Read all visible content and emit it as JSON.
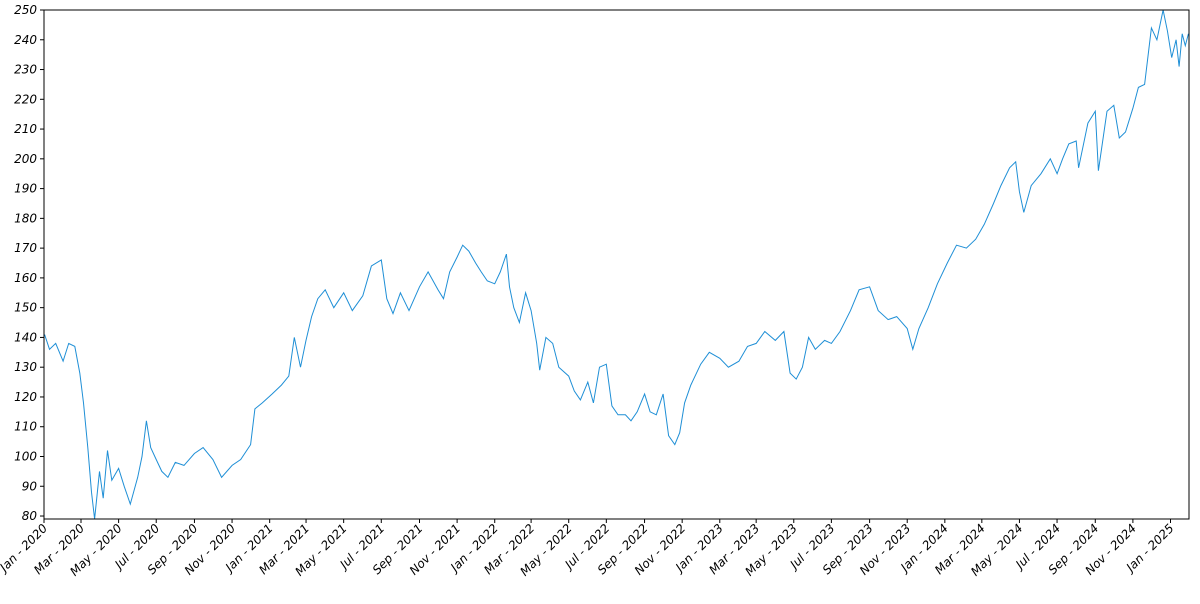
{
  "chart_data": {
    "type": "line",
    "title": "",
    "xlabel": "",
    "ylabel": "",
    "grid": false,
    "legend": "none",
    "line_color": "#1f8fd6",
    "ylim": [
      79,
      250
    ],
    "xlim": [
      "2020-01-01",
      "2025-01-31"
    ],
    "y_ticks": [
      80,
      90,
      100,
      110,
      120,
      130,
      140,
      150,
      160,
      170,
      180,
      190,
      200,
      210,
      220,
      230,
      240,
      250
    ],
    "x_ticks": [
      {
        "date": "2020-01-01",
        "label": "Jan - 2020"
      },
      {
        "date": "2020-03-01",
        "label": "Mar - 2020"
      },
      {
        "date": "2020-05-01",
        "label": "May - 2020"
      },
      {
        "date": "2020-07-01",
        "label": "Jul - 2020"
      },
      {
        "date": "2020-09-01",
        "label": "Sep - 2020"
      },
      {
        "date": "2020-11-01",
        "label": "Nov - 2020"
      },
      {
        "date": "2021-01-01",
        "label": "Jan - 2021"
      },
      {
        "date": "2021-03-01",
        "label": "Mar - 2021"
      },
      {
        "date": "2021-05-01",
        "label": "May - 2021"
      },
      {
        "date": "2021-07-01",
        "label": "Jul - 2021"
      },
      {
        "date": "2021-09-01",
        "label": "Sep - 2021"
      },
      {
        "date": "2021-11-01",
        "label": "Nov - 2021"
      },
      {
        "date": "2022-01-01",
        "label": "Jan - 2022"
      },
      {
        "date": "2022-03-01",
        "label": "Mar - 2022"
      },
      {
        "date": "2022-05-01",
        "label": "May - 2022"
      },
      {
        "date": "2022-07-01",
        "label": "Jul - 2022"
      },
      {
        "date": "2022-09-01",
        "label": "Sep - 2022"
      },
      {
        "date": "2022-11-01",
        "label": "Nov - 2022"
      },
      {
        "date": "2023-01-01",
        "label": "Jan - 2023"
      },
      {
        "date": "2023-03-01",
        "label": "Mar - 2023"
      },
      {
        "date": "2023-05-01",
        "label": "May - 2023"
      },
      {
        "date": "2023-07-01",
        "label": "Jul - 2023"
      },
      {
        "date": "2023-09-01",
        "label": "Sep - 2023"
      },
      {
        "date": "2023-11-01",
        "label": "Nov - 2023"
      },
      {
        "date": "2024-01-01",
        "label": "Jan - 2024"
      },
      {
        "date": "2024-03-01",
        "label": "Mar - 2024"
      },
      {
        "date": "2024-05-01",
        "label": "May - 2024"
      },
      {
        "date": "2024-07-01",
        "label": "Jul - 2024"
      },
      {
        "date": "2024-09-01",
        "label": "Sep - 2024"
      },
      {
        "date": "2024-11-01",
        "label": "Nov - 2024"
      },
      {
        "date": "2025-01-01",
        "label": "Jan - 2025"
      }
    ],
    "series": [
      {
        "points": [
          [
            "2020-01-02",
            141
          ],
          [
            "2020-01-10",
            136
          ],
          [
            "2020-01-20",
            138
          ],
          [
            "2020-02-01",
            132
          ],
          [
            "2020-02-10",
            138
          ],
          [
            "2020-02-20",
            137
          ],
          [
            "2020-02-28",
            128
          ],
          [
            "2020-03-05",
            118
          ],
          [
            "2020-03-12",
            103
          ],
          [
            "2020-03-18",
            88
          ],
          [
            "2020-03-23",
            79
          ],
          [
            "2020-03-31",
            95
          ],
          [
            "2020-04-06",
            86
          ],
          [
            "2020-04-13",
            102
          ],
          [
            "2020-04-20",
            92
          ],
          [
            "2020-05-01",
            96
          ],
          [
            "2020-05-10",
            90
          ],
          [
            "2020-05-20",
            84
          ],
          [
            "2020-06-01",
            93
          ],
          [
            "2020-06-08",
            100
          ],
          [
            "2020-06-15",
            112
          ],
          [
            "2020-06-22",
            103
          ],
          [
            "2020-07-01",
            99
          ],
          [
            "2020-07-10",
            95
          ],
          [
            "2020-07-20",
            93
          ],
          [
            "2020-08-01",
            98
          ],
          [
            "2020-08-15",
            97
          ],
          [
            "2020-09-01",
            101
          ],
          [
            "2020-09-15",
            103
          ],
          [
            "2020-10-01",
            99
          ],
          [
            "2020-10-15",
            93
          ],
          [
            "2020-11-01",
            97
          ],
          [
            "2020-11-15",
            99
          ],
          [
            "2020-12-01",
            104
          ],
          [
            "2020-12-08",
            116
          ],
          [
            "2020-12-20",
            118
          ],
          [
            "2021-01-05",
            121
          ],
          [
            "2021-01-20",
            124
          ],
          [
            "2021-02-01",
            127
          ],
          [
            "2021-02-10",
            140
          ],
          [
            "2021-02-20",
            130
          ],
          [
            "2021-03-01",
            139
          ],
          [
            "2021-03-10",
            147
          ],
          [
            "2021-03-20",
            153
          ],
          [
            "2021-04-01",
            156
          ],
          [
            "2021-04-15",
            150
          ],
          [
            "2021-05-01",
            155
          ],
          [
            "2021-05-15",
            149
          ],
          [
            "2021-06-01",
            154
          ],
          [
            "2021-06-15",
            164
          ],
          [
            "2021-07-01",
            166
          ],
          [
            "2021-07-10",
            153
          ],
          [
            "2021-07-20",
            148
          ],
          [
            "2021-08-01",
            155
          ],
          [
            "2021-08-15",
            149
          ],
          [
            "2021-09-01",
            157
          ],
          [
            "2021-09-15",
            162
          ],
          [
            "2021-10-01",
            156
          ],
          [
            "2021-10-10",
            153
          ],
          [
            "2021-10-20",
            162
          ],
          [
            "2021-11-01",
            167
          ],
          [
            "2021-11-10",
            171
          ],
          [
            "2021-11-20",
            169
          ],
          [
            "2021-12-01",
            165
          ],
          [
            "2021-12-10",
            162
          ],
          [
            "2021-12-20",
            159
          ],
          [
            "2022-01-01",
            158
          ],
          [
            "2022-01-10",
            162
          ],
          [
            "2022-01-20",
            168
          ],
          [
            "2022-01-25",
            157
          ],
          [
            "2022-02-01",
            150
          ],
          [
            "2022-02-10",
            145
          ],
          [
            "2022-02-20",
            155
          ],
          [
            "2022-03-01",
            149
          ],
          [
            "2022-03-10",
            138
          ],
          [
            "2022-03-15",
            129
          ],
          [
            "2022-03-25",
            140
          ],
          [
            "2022-04-05",
            138
          ],
          [
            "2022-04-15",
            130
          ],
          [
            "2022-05-01",
            127
          ],
          [
            "2022-05-10",
            122
          ],
          [
            "2022-05-20",
            119
          ],
          [
            "2022-06-01",
            125
          ],
          [
            "2022-06-10",
            118
          ],
          [
            "2022-06-20",
            130
          ],
          [
            "2022-07-01",
            131
          ],
          [
            "2022-07-10",
            117
          ],
          [
            "2022-07-20",
            114
          ],
          [
            "2022-08-01",
            114
          ],
          [
            "2022-08-10",
            112
          ],
          [
            "2022-08-20",
            115
          ],
          [
            "2022-09-01",
            121
          ],
          [
            "2022-09-10",
            115
          ],
          [
            "2022-09-20",
            114
          ],
          [
            "2022-10-01",
            121
          ],
          [
            "2022-10-10",
            107
          ],
          [
            "2022-10-20",
            104
          ],
          [
            "2022-10-28",
            108
          ],
          [
            "2022-11-05",
            118
          ],
          [
            "2022-11-15",
            124
          ],
          [
            "2022-12-01",
            131
          ],
          [
            "2022-12-15",
            135
          ],
          [
            "2023-01-01",
            133
          ],
          [
            "2023-01-15",
            130
          ],
          [
            "2023-02-01",
            132
          ],
          [
            "2023-02-15",
            137
          ],
          [
            "2023-03-01",
            138
          ],
          [
            "2023-03-15",
            142
          ],
          [
            "2023-04-01",
            139
          ],
          [
            "2023-04-15",
            142
          ],
          [
            "2023-04-25",
            128
          ],
          [
            "2023-05-05",
            126
          ],
          [
            "2023-05-15",
            130
          ],
          [
            "2023-05-25",
            140
          ],
          [
            "2023-06-05",
            136
          ],
          [
            "2023-06-20",
            139
          ],
          [
            "2023-07-01",
            138
          ],
          [
            "2023-07-15",
            142
          ],
          [
            "2023-08-01",
            149
          ],
          [
            "2023-08-15",
            156
          ],
          [
            "2023-09-01",
            157
          ],
          [
            "2023-09-15",
            149
          ],
          [
            "2023-10-01",
            146
          ],
          [
            "2023-10-15",
            147
          ],
          [
            "2023-11-01",
            143
          ],
          [
            "2023-11-10",
            136
          ],
          [
            "2023-11-20",
            143
          ],
          [
            "2023-12-05",
            150
          ],
          [
            "2023-12-20",
            158
          ],
          [
            "2024-01-05",
            165
          ],
          [
            "2024-01-20",
            171
          ],
          [
            "2024-02-05",
            170
          ],
          [
            "2024-02-20",
            173
          ],
          [
            "2024-03-05",
            178
          ],
          [
            "2024-03-20",
            185
          ],
          [
            "2024-04-01",
            191
          ],
          [
            "2024-04-15",
            197
          ],
          [
            "2024-04-25",
            199
          ],
          [
            "2024-05-01",
            189
          ],
          [
            "2024-05-08",
            182
          ],
          [
            "2024-05-20",
            191
          ],
          [
            "2024-06-05",
            195
          ],
          [
            "2024-06-20",
            200
          ],
          [
            "2024-07-01",
            195
          ],
          [
            "2024-07-10",
            200
          ],
          [
            "2024-07-20",
            205
          ],
          [
            "2024-08-01",
            206
          ],
          [
            "2024-08-05",
            197
          ],
          [
            "2024-08-20",
            212
          ],
          [
            "2024-09-01",
            216
          ],
          [
            "2024-09-06",
            196
          ],
          [
            "2024-09-20",
            216
          ],
          [
            "2024-10-01",
            218
          ],
          [
            "2024-10-10",
            207
          ],
          [
            "2024-10-20",
            209
          ],
          [
            "2024-11-01",
            217
          ],
          [
            "2024-11-10",
            224
          ],
          [
            "2024-11-20",
            225
          ],
          [
            "2024-12-01",
            244
          ],
          [
            "2024-12-10",
            240
          ],
          [
            "2024-12-20",
            250
          ],
          [
            "2024-12-27",
            243
          ],
          [
            "2025-01-03",
            234
          ],
          [
            "2025-01-10",
            240
          ],
          [
            "2025-01-15",
            231
          ],
          [
            "2025-01-20",
            242
          ],
          [
            "2025-01-25",
            238
          ],
          [
            "2025-01-30",
            242
          ]
        ]
      }
    ]
  }
}
